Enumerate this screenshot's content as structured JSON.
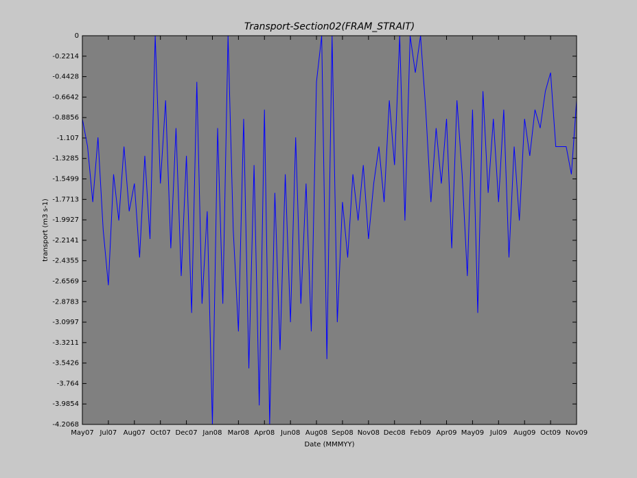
{
  "chart_data": {
    "type": "line",
    "title": "Transport-Section02(FRAM_STRAIT)",
    "x_label": "Date (MMMYY)",
    "y_label": "transport (m3 s-1)",
    "color": "#0000ff",
    "background": "#808080",
    "categories": [
      "May07",
      null,
      null,
      null,
      null,
      "Jul07",
      null,
      null,
      null,
      null,
      "Aug07",
      null,
      null,
      null,
      null,
      "Oct07",
      null,
      null,
      null,
      null,
      "Dec07",
      null,
      null,
      null,
      null,
      "Jan08",
      null,
      null,
      null,
      null,
      "Mar08",
      null,
      null,
      null,
      null,
      "Apr08",
      null,
      null,
      null,
      null,
      "Jun08",
      null,
      null,
      null,
      null,
      "Aug08",
      null,
      null,
      null,
      null,
      "Sep08",
      null,
      null,
      null,
      null,
      "Nov08",
      null,
      null,
      null,
      null,
      "Dec08",
      null,
      null,
      null,
      null,
      "Feb09",
      null,
      null,
      null,
      null,
      "Apr09",
      null,
      null,
      null,
      null,
      "May09",
      null,
      null,
      null,
      null,
      "Jul09",
      null,
      null,
      null,
      null,
      "Aug09",
      null,
      null,
      null,
      null,
      "Oct09",
      null,
      null,
      null,
      null,
      "Nov09"
    ],
    "values": [
      -0.9,
      -1.2,
      -1.8,
      -1.1,
      -2.1,
      -2.7,
      -1.5,
      -2.0,
      -1.2,
      -1.9,
      -1.6,
      -2.4,
      -1.3,
      -2.2,
      0,
      -1.6,
      -0.7,
      -2.3,
      -1.0,
      -2.6,
      -1.3,
      -3.0,
      -0.5,
      -2.9,
      -1.9,
      -4.2068,
      -1.0,
      -2.9,
      0,
      -2.1,
      -3.2,
      -0.9,
      -3.6,
      -1.4,
      -4.0,
      -0.8,
      -4.2068,
      -1.7,
      -3.4,
      -1.5,
      -3.1,
      -1.1,
      -2.9,
      -1.6,
      -3.2,
      -0.5,
      0,
      -3.5,
      0,
      -3.1,
      -1.8,
      -2.4,
      -1.5,
      -2.0,
      -1.4,
      -2.2,
      -1.6,
      -1.2,
      -1.8,
      -0.7,
      -1.4,
      0,
      -2.0,
      0,
      -0.4,
      0,
      -0.8,
      -1.8,
      -1.0,
      -1.6,
      -0.9,
      -2.3,
      -0.7,
      -1.5,
      -2.6,
      -0.8,
      -3.0,
      -0.6,
      -1.7,
      -0.9,
      -1.8,
      -0.8,
      -2.4,
      -1.2,
      -2.0,
      -0.9,
      -1.3,
      -0.8,
      -1.0,
      -0.6,
      -0.4,
      -1.2,
      -1.2,
      -1.2,
      -1.5,
      -0.7
    ],
    "ylim": [
      -4.2068,
      0
    ],
    "yticks": [
      0,
      -0.2214,
      -0.4428,
      -0.6642,
      -0.8856,
      -1.107,
      -1.3285,
      -1.5499,
      -1.7713,
      -1.9927,
      -2.2141,
      -2.4355,
      -2.6569,
      -2.8783,
      -3.0997,
      -3.3211,
      -3.5426,
      -3.764,
      -3.9854,
      -4.2068
    ]
  }
}
